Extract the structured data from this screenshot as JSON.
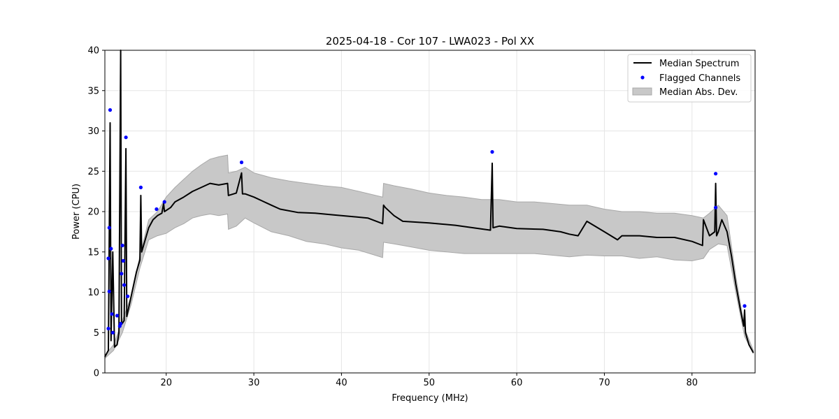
{
  "chart_data": {
    "type": "line",
    "title": "2025-04-18 - Cor 107 - LWA023 - Pol XX",
    "xlabel": "Frequency (MHz)",
    "ylabel": "Power (CPU)",
    "xlim": [
      13,
      87.2
    ],
    "ylim": [
      0,
      40
    ],
    "xticks": [
      20,
      30,
      40,
      50,
      60,
      70,
      80
    ],
    "yticks": [
      0,
      5,
      10,
      15,
      20,
      25,
      30,
      35,
      40
    ],
    "grid": true,
    "legend": {
      "placement": "upper-right",
      "entries": [
        {
          "label": "Median Spectrum",
          "kind": "line",
          "color": "#000000"
        },
        {
          "label": "Flagged Channels",
          "kind": "marker",
          "color": "#0000ff"
        },
        {
          "label": "Median Abs. Dev.",
          "kind": "patch",
          "color": "#c8c8c8"
        }
      ]
    },
    "series": [
      {
        "name": "Median Spectrum",
        "color": "#000000",
        "points": [
          [
            13.0,
            2.0
          ],
          [
            13.4,
            2.8
          ],
          [
            13.6,
            31.0
          ],
          [
            13.7,
            4.0
          ],
          [
            13.9,
            15.0
          ],
          [
            14.1,
            3.2
          ],
          [
            14.4,
            3.5
          ],
          [
            14.6,
            5.0
          ],
          [
            14.8,
            40.0
          ],
          [
            14.9,
            6.0
          ],
          [
            15.2,
            6.5
          ],
          [
            15.4,
            27.8
          ],
          [
            15.5,
            7.0
          ],
          [
            15.8,
            8.5
          ],
          [
            16.2,
            10.5
          ],
          [
            16.6,
            12.5
          ],
          [
            17.0,
            14.0
          ],
          [
            17.1,
            22.0
          ],
          [
            17.2,
            15.0
          ],
          [
            17.6,
            16.5
          ],
          [
            18.0,
            18.0
          ],
          [
            18.5,
            19.0
          ],
          [
            19.0,
            19.5
          ],
          [
            19.5,
            19.8
          ],
          [
            19.7,
            21.0
          ],
          [
            19.8,
            20.0
          ],
          [
            20.5,
            20.5
          ],
          [
            21.0,
            21.2
          ],
          [
            22.0,
            21.8
          ],
          [
            23.0,
            22.5
          ],
          [
            24.0,
            23.0
          ],
          [
            25.0,
            23.5
          ],
          [
            26.0,
            23.3
          ],
          [
            27.0,
            23.5
          ],
          [
            27.1,
            22.0
          ],
          [
            28.0,
            22.3
          ],
          [
            28.6,
            24.8
          ],
          [
            28.7,
            22.2
          ],
          [
            29.0,
            22.2
          ],
          [
            30.0,
            21.8
          ],
          [
            31.0,
            21.3
          ],
          [
            32.0,
            20.8
          ],
          [
            33.0,
            20.3
          ],
          [
            35.0,
            19.9
          ],
          [
            37.0,
            19.8
          ],
          [
            39.0,
            19.6
          ],
          [
            41.0,
            19.4
          ],
          [
            43.0,
            19.2
          ],
          [
            44.7,
            18.5
          ],
          [
            44.8,
            20.8
          ],
          [
            45.0,
            20.5
          ],
          [
            46.0,
            19.5
          ],
          [
            47.0,
            18.8
          ],
          [
            50.0,
            18.6
          ],
          [
            53.0,
            18.3
          ],
          [
            55.0,
            18.0
          ],
          [
            57.0,
            17.7
          ],
          [
            57.2,
            26.0
          ],
          [
            57.3,
            18.0
          ],
          [
            58.0,
            18.2
          ],
          [
            60.0,
            17.9
          ],
          [
            63.0,
            17.8
          ],
          [
            65.0,
            17.5
          ],
          [
            66.0,
            17.2
          ],
          [
            67.0,
            17.0
          ],
          [
            68.0,
            18.8
          ],
          [
            70.0,
            17.5
          ],
          [
            71.5,
            16.5
          ],
          [
            72.0,
            17.0
          ],
          [
            74.0,
            17.0
          ],
          [
            76.0,
            16.8
          ],
          [
            78.0,
            16.8
          ],
          [
            80.0,
            16.3
          ],
          [
            81.2,
            15.8
          ],
          [
            81.3,
            19.0
          ],
          [
            82.0,
            17.0
          ],
          [
            82.6,
            17.5
          ],
          [
            82.7,
            23.5
          ],
          [
            82.8,
            17.0
          ],
          [
            83.0,
            17.5
          ],
          [
            83.4,
            19.0
          ],
          [
            84.0,
            17.5
          ],
          [
            84.5,
            14.5
          ],
          [
            85.0,
            11.0
          ],
          [
            85.5,
            8.0
          ],
          [
            85.9,
            5.8
          ],
          [
            86.0,
            7.8
          ],
          [
            86.1,
            5.0
          ],
          [
            86.5,
            3.5
          ],
          [
            87.0,
            2.5
          ]
        ]
      },
      {
        "name": "Median Abs. Dev.",
        "color": "#c8c8c8",
        "lower": [
          [
            13.0,
            1.8
          ],
          [
            14.0,
            2.8
          ],
          [
            15.0,
            5.0
          ],
          [
            16.0,
            8.5
          ],
          [
            17.0,
            13.0
          ],
          [
            18.0,
            16.5
          ],
          [
            19.0,
            17.0
          ],
          [
            20.0,
            17.3
          ],
          [
            21.0,
            18.0
          ],
          [
            22.0,
            18.5
          ],
          [
            23.0,
            19.2
          ],
          [
            24.0,
            19.5
          ],
          [
            25.0,
            19.7
          ],
          [
            26.0,
            19.5
          ],
          [
            27.0,
            19.7
          ],
          [
            27.1,
            17.8
          ],
          [
            28.0,
            18.2
          ],
          [
            29.0,
            19.2
          ],
          [
            30.0,
            18.6
          ],
          [
            32.0,
            17.5
          ],
          [
            34.0,
            17.0
          ],
          [
            36.0,
            16.3
          ],
          [
            38.0,
            16.0
          ],
          [
            40.0,
            15.5
          ],
          [
            42.0,
            15.2
          ],
          [
            44.7,
            14.3
          ],
          [
            44.8,
            16.2
          ],
          [
            46.0,
            16.0
          ],
          [
            48.0,
            15.6
          ],
          [
            50.0,
            15.2
          ],
          [
            52.0,
            15.0
          ],
          [
            54.0,
            14.8
          ],
          [
            56.0,
            14.8
          ],
          [
            58.0,
            14.8
          ],
          [
            60.0,
            14.8
          ],
          [
            62.0,
            14.8
          ],
          [
            64.0,
            14.6
          ],
          [
            66.0,
            14.4
          ],
          [
            68.0,
            14.6
          ],
          [
            70.0,
            14.5
          ],
          [
            72.0,
            14.5
          ],
          [
            74.0,
            14.2
          ],
          [
            76.0,
            14.4
          ],
          [
            78.0,
            14.0
          ],
          [
            80.0,
            13.9
          ],
          [
            81.3,
            14.2
          ],
          [
            82.0,
            15.3
          ],
          [
            83.0,
            16.0
          ],
          [
            84.0,
            15.8
          ],
          [
            85.0,
            10.0
          ],
          [
            86.0,
            4.5
          ],
          [
            87.0,
            2.4
          ]
        ],
        "upper": [
          [
            13.0,
            2.2
          ],
          [
            14.0,
            3.5
          ],
          [
            15.0,
            6.5
          ],
          [
            16.0,
            9.5
          ],
          [
            17.0,
            14.5
          ],
          [
            18.0,
            19.0
          ],
          [
            19.0,
            20.0
          ],
          [
            20.0,
            21.8
          ],
          [
            21.0,
            23.0
          ],
          [
            22.0,
            24.0
          ],
          [
            23.0,
            25.0
          ],
          [
            24.0,
            25.8
          ],
          [
            25.0,
            26.5
          ],
          [
            26.0,
            26.8
          ],
          [
            27.0,
            27.0
          ],
          [
            27.1,
            24.8
          ],
          [
            28.0,
            25.0
          ],
          [
            29.0,
            25.5
          ],
          [
            30.0,
            24.8
          ],
          [
            32.0,
            24.2
          ],
          [
            34.0,
            23.8
          ],
          [
            36.0,
            23.5
          ],
          [
            38.0,
            23.2
          ],
          [
            40.0,
            23.0
          ],
          [
            42.0,
            22.5
          ],
          [
            44.7,
            21.8
          ],
          [
            44.8,
            23.5
          ],
          [
            46.0,
            23.2
          ],
          [
            48.0,
            22.8
          ],
          [
            50.0,
            22.3
          ],
          [
            52.0,
            22.0
          ],
          [
            54.0,
            21.8
          ],
          [
            56.0,
            21.5
          ],
          [
            58.0,
            21.5
          ],
          [
            60.0,
            21.2
          ],
          [
            62.0,
            21.2
          ],
          [
            64.0,
            21.0
          ],
          [
            66.0,
            20.8
          ],
          [
            68.0,
            20.8
          ],
          [
            70.0,
            20.3
          ],
          [
            72.0,
            20.0
          ],
          [
            74.0,
            20.0
          ],
          [
            76.0,
            19.8
          ],
          [
            78.0,
            19.8
          ],
          [
            80.0,
            19.5
          ],
          [
            81.3,
            19.2
          ],
          [
            82.0,
            19.8
          ],
          [
            83.0,
            20.8
          ],
          [
            84.0,
            19.5
          ],
          [
            85.0,
            12.0
          ],
          [
            86.0,
            5.5
          ],
          [
            87.0,
            2.8
          ]
        ]
      },
      {
        "name": "Flagged Channels",
        "color": "#0000ff",
        "points": [
          [
            13.6,
            32.6
          ],
          [
            13.5,
            18.0
          ],
          [
            13.4,
            14.2
          ],
          [
            13.5,
            10.1
          ],
          [
            13.7,
            15.4
          ],
          [
            13.4,
            5.5
          ],
          [
            13.8,
            7.3
          ],
          [
            13.9,
            5.0
          ],
          [
            14.4,
            7.1
          ],
          [
            14.7,
            5.8
          ],
          [
            14.8,
            6.1
          ],
          [
            14.9,
            12.3
          ],
          [
            15.0,
            15.8
          ],
          [
            15.1,
            13.9
          ],
          [
            15.2,
            10.9
          ],
          [
            15.4,
            29.2
          ],
          [
            15.6,
            9.5
          ],
          [
            17.1,
            23.0
          ],
          [
            18.9,
            20.3
          ],
          [
            19.8,
            21.2
          ],
          [
            28.6,
            26.1
          ],
          [
            57.2,
            27.4
          ],
          [
            82.7,
            24.7
          ],
          [
            82.7,
            20.5
          ],
          [
            86.0,
            8.3
          ]
        ]
      }
    ]
  }
}
